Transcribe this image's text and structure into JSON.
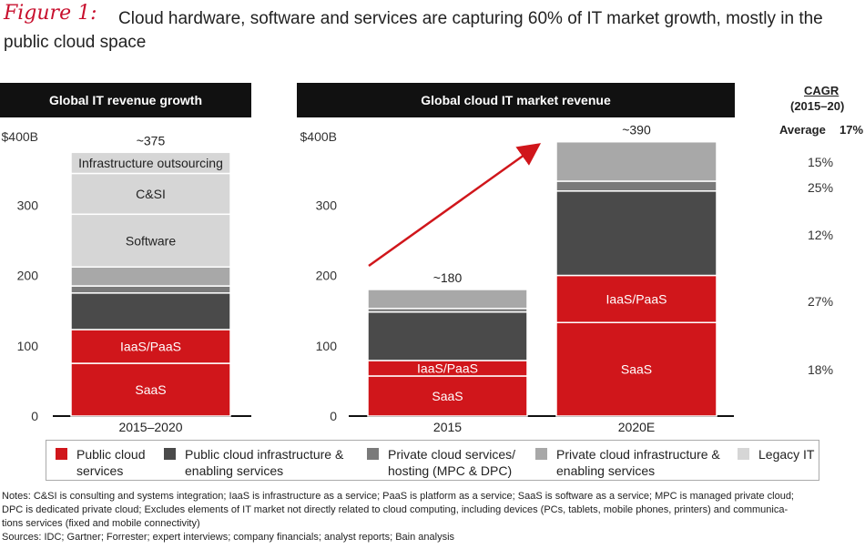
{
  "figure": {
    "label": "Figure 1:",
    "title_line1": "Cloud hardware, software and services are capturing 60% of IT market growth, mostly in the",
    "title_line2": "public cloud space"
  },
  "panels": {
    "left_header": "Global IT revenue growth",
    "right_header": "Global cloud IT market revenue"
  },
  "cagr": {
    "title": "CAGR",
    "range": "(2015–20)",
    "average_label": "Average",
    "average_value": "17%",
    "values": [
      "15%",
      "25%",
      "12%",
      "27%",
      "18%"
    ]
  },
  "chart_data": [
    {
      "type": "bar",
      "title": "Global IT revenue growth",
      "categories": [
        "2015–2020"
      ],
      "ylim": [
        0,
        400
      ],
      "yticks": [
        "0",
        "100",
        "200",
        "300",
        "$400B"
      ],
      "total_label": "~375",
      "series": [
        {
          "name": "SaaS",
          "values": [
            75
          ],
          "label": "SaaS"
        },
        {
          "name": "IaaS/PaaS",
          "values": [
            48
          ],
          "label": "IaaS/PaaS"
        },
        {
          "name": "Public cloud infrastructure & enabling services",
          "values": [
            52
          ]
        },
        {
          "name": "Private cloud services/ hosting (MPC & DPC)",
          "values": [
            10
          ]
        },
        {
          "name": "Private cloud infrastructure & enabling services",
          "values": [
            27
          ]
        },
        {
          "name": "Software",
          "values": [
            75
          ],
          "label": "Software"
        },
        {
          "name": "C&SI",
          "values": [
            58
          ],
          "label": "C&SI"
        },
        {
          "name": "Infrastructure outsourcing",
          "values": [
            30
          ],
          "label": "Infrastructure outsourcing"
        }
      ]
    },
    {
      "type": "bar",
      "title": "Global cloud IT market revenue",
      "categories": [
        "2015",
        "2020E"
      ],
      "ylim": [
        0,
        400
      ],
      "yticks": [
        "0",
        "100",
        "200",
        "300",
        "$400B"
      ],
      "total_labels": [
        "~180",
        "~390"
      ],
      "series": [
        {
          "name": "SaaS",
          "values": [
            57,
            133
          ],
          "label": "SaaS"
        },
        {
          "name": "IaaS/PaaS",
          "values": [
            22,
            67
          ],
          "label": "IaaS/PaaS"
        },
        {
          "name": "Public cloud infrastructure & enabling services",
          "values": [
            69,
            120
          ]
        },
        {
          "name": "Private cloud services/ hosting (MPC & DPC)",
          "values": [
            5,
            14
          ]
        },
        {
          "name": "Private cloud infrastructure & enabling services",
          "values": [
            27,
            56
          ]
        }
      ]
    }
  ],
  "legend": [
    {
      "line1": "Public cloud",
      "line2": "services",
      "color": "#d0161b"
    },
    {
      "line1": "Public cloud infrastructure &",
      "line2": "enabling services",
      "color": "#4a4a4a"
    },
    {
      "line1": "Private cloud services/",
      "line2": "hosting (MPC & DPC)",
      "color": "#7a7a7a"
    },
    {
      "line1": "Private cloud infrastructure &",
      "line2": "enabling services",
      "color": "#a8a8a8"
    },
    {
      "line1": "Legacy IT",
      "line2": "",
      "color": "#d6d6d6"
    }
  ],
  "colors": {
    "SaaS": "#d0161b",
    "IaaS/PaaS": "#d0161b",
    "Public cloud infrastructure & enabling services": "#4a4a4a",
    "Private cloud services/ hosting (MPC & DPC)": "#7a7a7a",
    "Private cloud infrastructure & enabling services": "#a8a8a8",
    "Software": "#d6d6d6",
    "C&SI": "#d6d6d6",
    "Infrastructure outsourcing": "#d6d6d6",
    "arrow": "#d0161b"
  },
  "notes": {
    "line1": "Notes: C&SI is consulting and systems integration; IaaS is infrastructure as a service; PaaS is platform as a service; SaaS is software as a service; MPC is managed private cloud;",
    "line2": "DPC is dedicated private cloud; Excludes elements of IT market not directly related to cloud computing, including devices (PCs, tablets, mobile phones, printers) and communica-",
    "line3": "tions services (fixed and mobile connectivity)",
    "line4": "Sources: IDC; Gartner; Forrester; expert interviews; company financials; analyst reports; Bain analysis"
  }
}
